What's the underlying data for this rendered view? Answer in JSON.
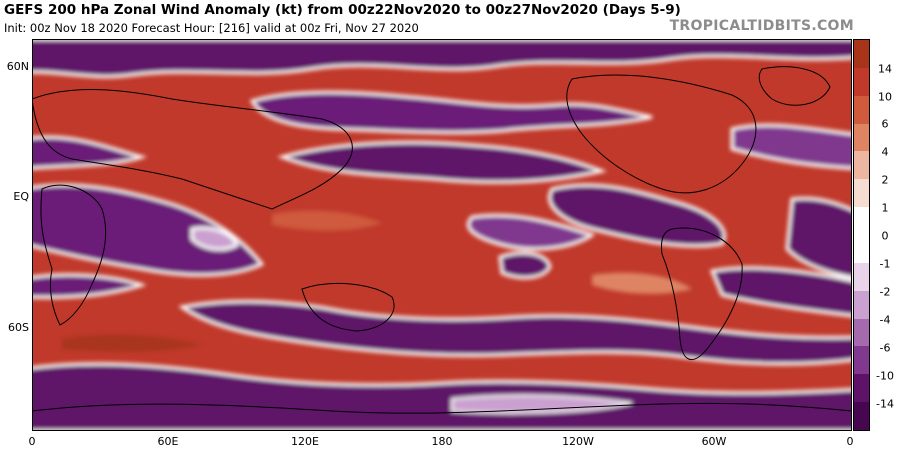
{
  "header": {
    "title": "GEFS 200 hPa Zonal Wind Anomaly (kt) from 00z22Nov2020 to 00z27Nov2020 (Days 5-9)",
    "subtitle": "Init: 00z Nov 18 2020   Forecast Hour: [216]   valid at 00z Fri, Nov 27 2020",
    "brand": "TROPICALTIDBITS.COM"
  },
  "map": {
    "y_labels": [
      "60N",
      "EQ",
      "60S"
    ],
    "x_labels": [
      "0",
      "60E",
      "120E",
      "180",
      "120W",
      "60W",
      "0"
    ]
  },
  "colorbar": {
    "labels": [
      "14",
      "10",
      "6",
      "4",
      "2",
      "1",
      "0",
      "-1",
      "-2",
      "-4",
      "-6",
      "-10",
      "-14"
    ],
    "colors": [
      "#a8341a",
      "#c0392b",
      "#cf5a3c",
      "#de8463",
      "#ecb6a0",
      "#f6dcd0",
      "#ffffff",
      "#ffffff",
      "#e8d3ea",
      "#c9a0cf",
      "#a46aad",
      "#80398e",
      "#5e1369",
      "#470750"
    ]
  }
}
